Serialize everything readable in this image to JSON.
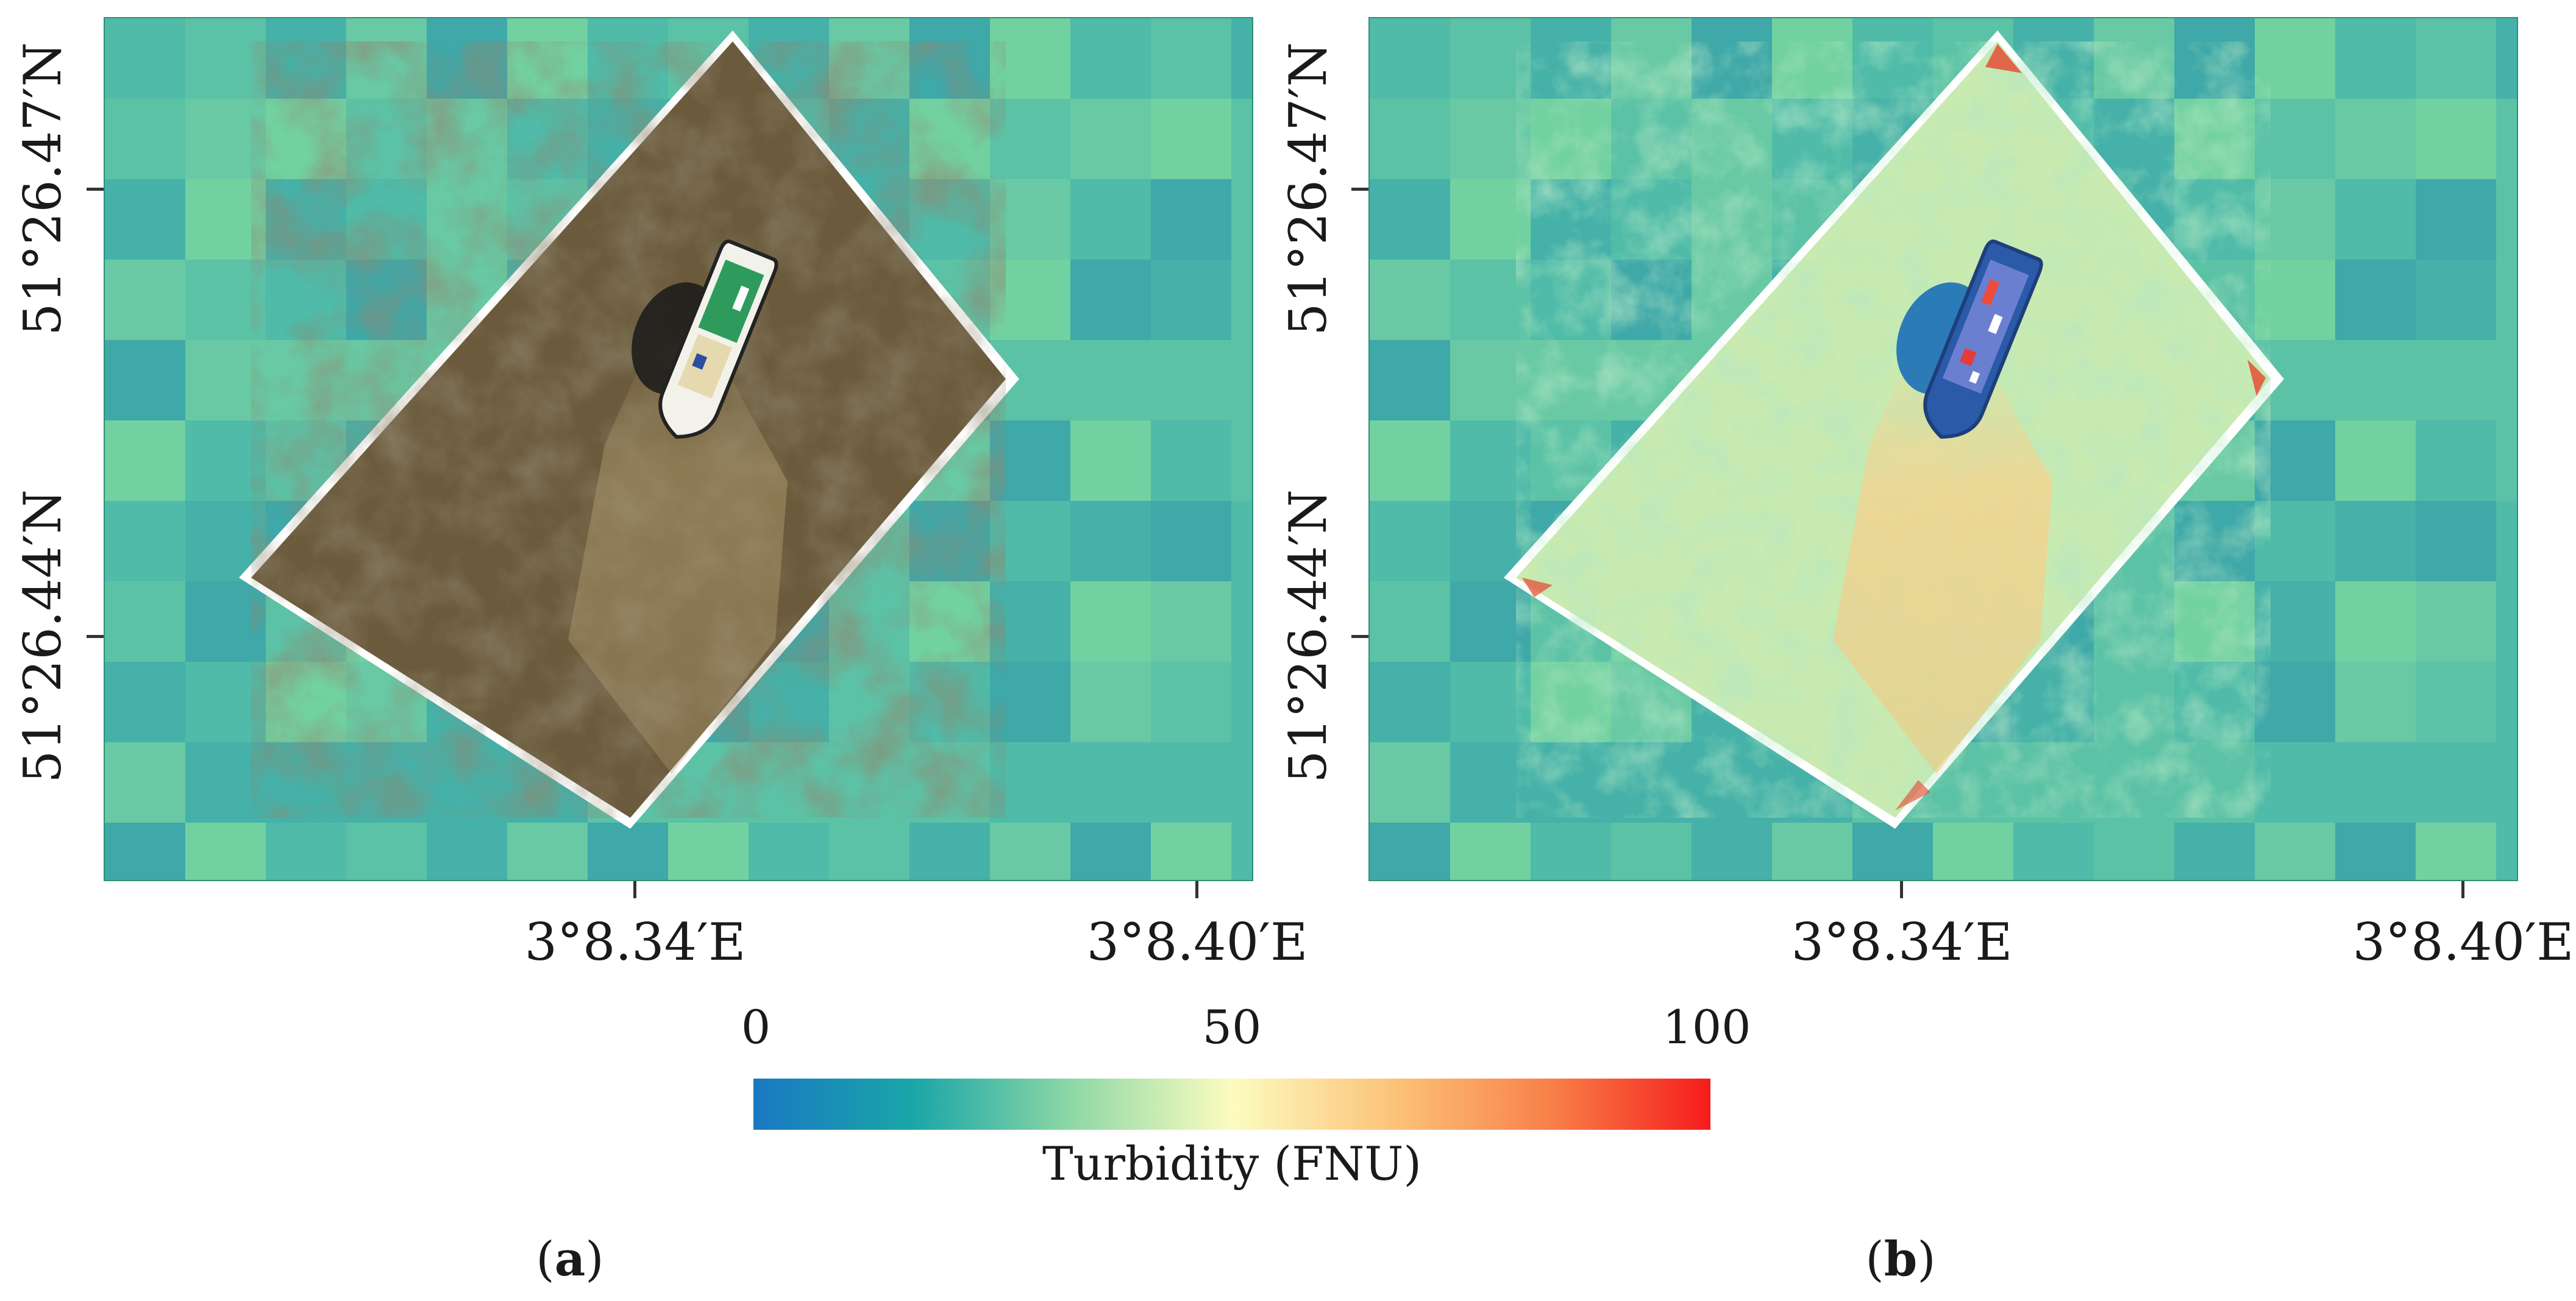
{
  "panels": [
    {
      "id": "a",
      "label": "a",
      "content": "rgb-drone-orthomosaic",
      "y_ticks": [
        "51°26.47′N",
        "51°26.44′N"
      ],
      "x_ticks": [
        "3°8.34′E",
        "3°8.40′E"
      ]
    },
    {
      "id": "b",
      "label": "b",
      "content": "turbidity-map",
      "y_ticks": [
        "51°26.47′N",
        "51°26.44′N"
      ],
      "x_ticks": [
        "3°8.34′E",
        "3°8.40′E"
      ]
    }
  ],
  "colorbar": {
    "title": "Turbidity (FNU)",
    "ticks": [
      "0",
      "50",
      "100"
    ],
    "range": [
      0,
      100
    ],
    "colors": [
      "#1a78c2",
      "#1aa6a8",
      "#8fd8a6",
      "#fcfcc0",
      "#fcc47a",
      "#f88048",
      "#f51c1c"
    ]
  },
  "colors": {
    "background_pixels": [
      "#4fbba8",
      "#5cc2a6",
      "#45b1a8",
      "#68c9a4",
      "#3fa8a8",
      "#72d1a1"
    ],
    "raw_water": "#6b5a3b",
    "map_border": "#2f8f78"
  }
}
